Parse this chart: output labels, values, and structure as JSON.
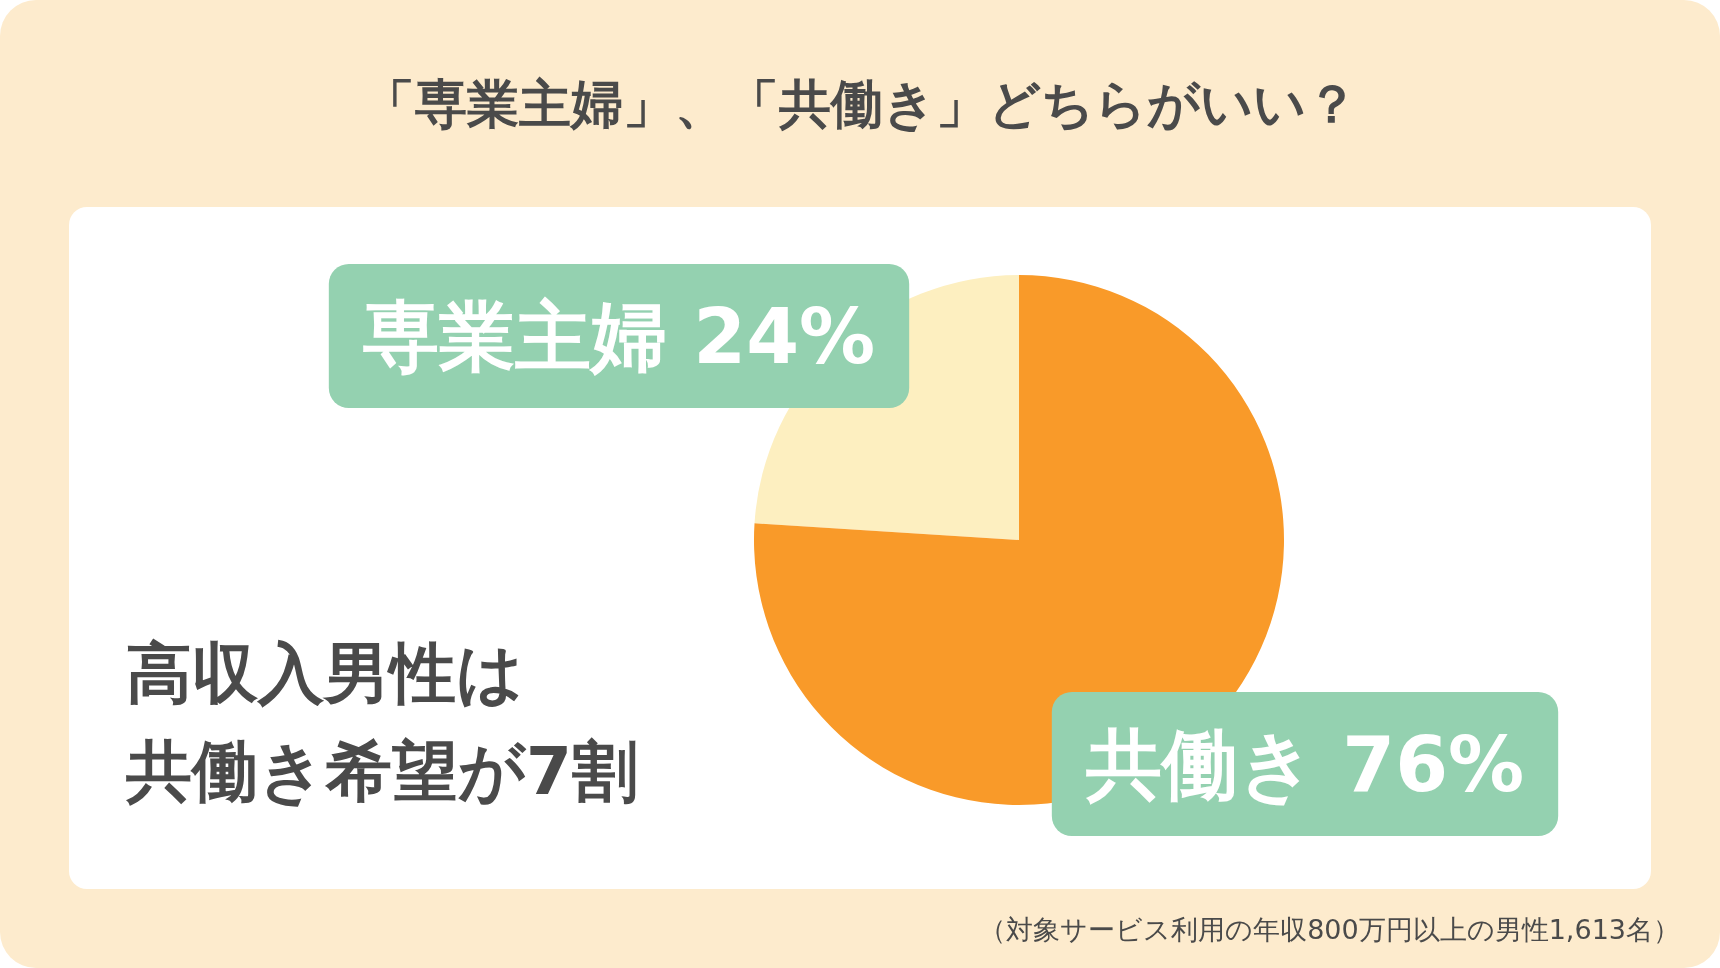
{
  "chart_data": {
    "type": "pie",
    "title": "「専業主婦」、「共働き」どちらがいい？",
    "categories": [
      "専業主婦",
      "共働き"
    ],
    "values": [
      24,
      76
    ],
    "colors": [
      "#fdefc0",
      "#f99a29"
    ],
    "value_labels": [
      "24%",
      "76%"
    ],
    "legend": false,
    "annotations": [
      "高収入男性は",
      "共働き希望が7割",
      "（対象サービス利用の年収800万円以上の男性1,613名）"
    ]
  }
}
